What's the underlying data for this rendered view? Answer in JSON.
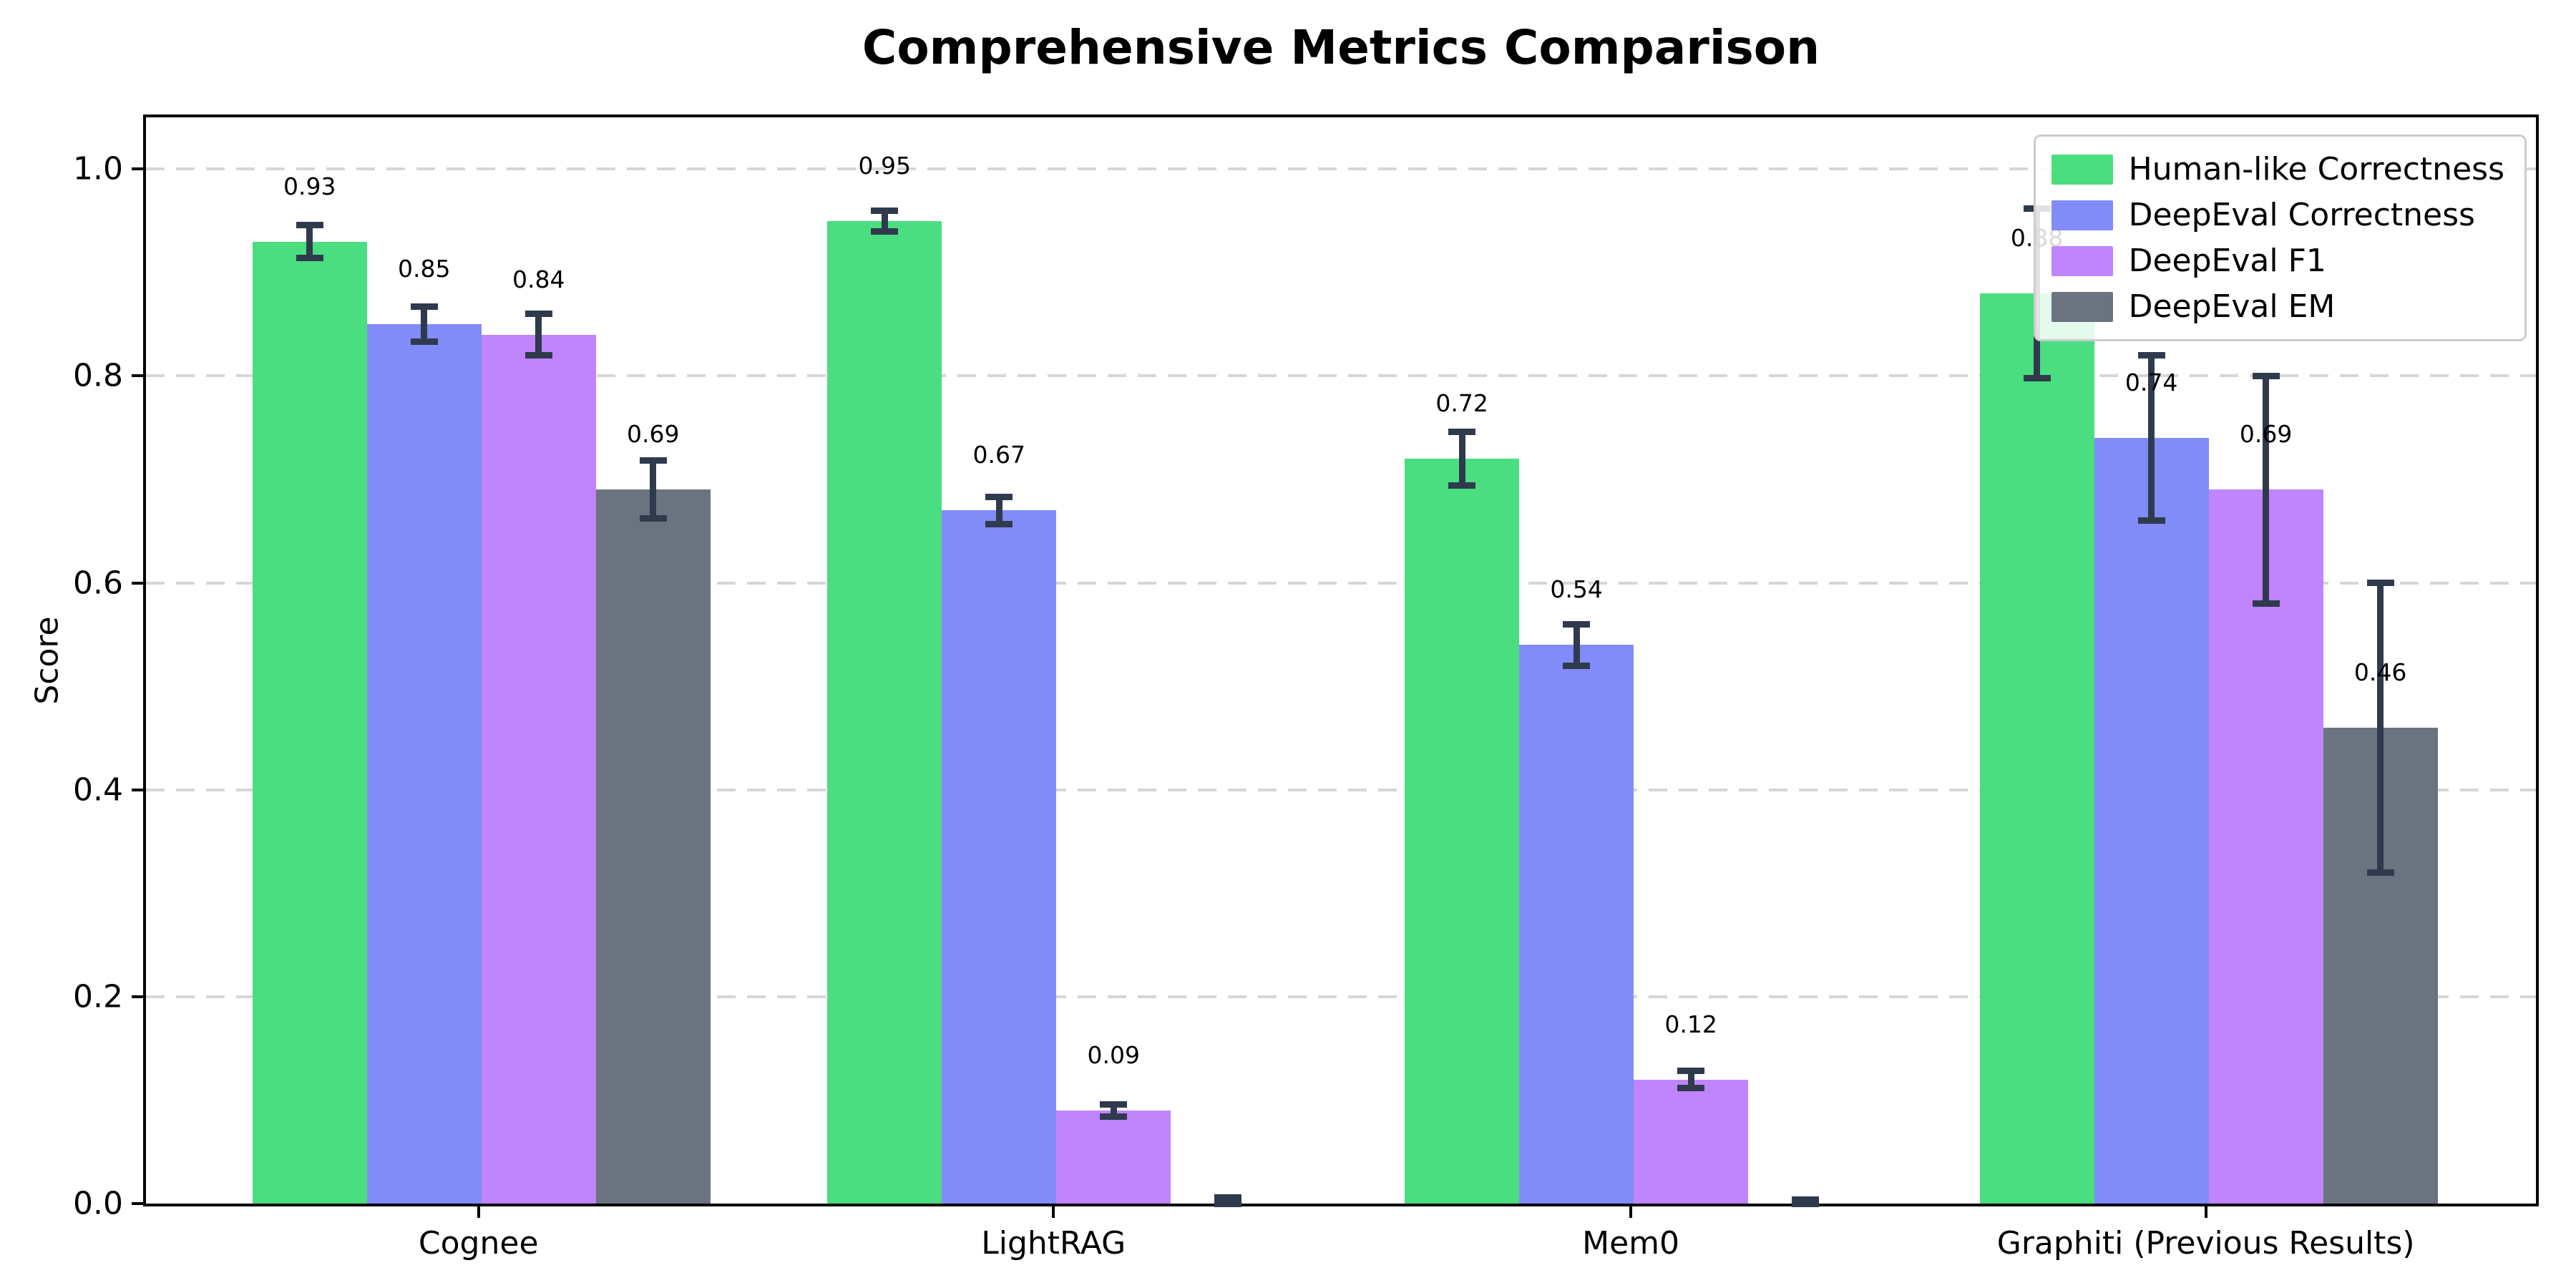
{
  "title": "Comprehensive Metrics Comparison",
  "chart_data": {
    "type": "bar",
    "title": "Comprehensive Metrics Comparison",
    "xlabel": "",
    "ylabel": "Score",
    "ylim": [
      0,
      1.05
    ],
    "yticks": [
      0.0,
      0.2,
      0.4,
      0.6,
      0.8,
      1.0
    ],
    "ytick_labels": [
      "0.0",
      "0.2",
      "0.4",
      "0.6",
      "0.8",
      "1.0"
    ],
    "grid": "horizontal-dashed",
    "legend_position": "upper-right",
    "categories": [
      "Cognee",
      "LightRAG",
      "Mem0",
      "Graphiti (Previous Results)"
    ],
    "series": [
      {
        "name": "Human-like Correctness",
        "color": "#4ade80",
        "values": [
          0.93,
          0.95,
          0.72,
          0.88
        ],
        "errors": [
          0.016,
          0.01,
          0.026,
          0.082
        ],
        "labels": [
          "0.93",
          "0.95",
          "0.72",
          "0.88"
        ]
      },
      {
        "name": "DeepEval Correctness",
        "color": "#818cf8",
        "values": [
          0.85,
          0.67,
          0.54,
          0.74
        ],
        "errors": [
          0.017,
          0.013,
          0.02,
          0.08
        ],
        "labels": [
          "0.85",
          "0.67",
          "0.54",
          "0.74"
        ]
      },
      {
        "name": "DeepEval F1",
        "color": "#c084fc",
        "values": [
          0.84,
          0.09,
          0.12,
          0.69
        ],
        "errors": [
          0.02,
          0.006,
          0.008,
          0.11
        ],
        "labels": [
          "0.84",
          "0.09",
          "0.12",
          "0.69"
        ]
      },
      {
        "name": "DeepEval EM",
        "color": "#6b7280",
        "values": [
          0.69,
          0.0,
          0.0,
          0.46
        ],
        "errors": [
          0.028,
          0.006,
          0.004,
          0.14
        ],
        "labels": [
          "0.69",
          null,
          null,
          "0.46"
        ]
      }
    ],
    "error_bar_color": "#2f3a4d"
  }
}
